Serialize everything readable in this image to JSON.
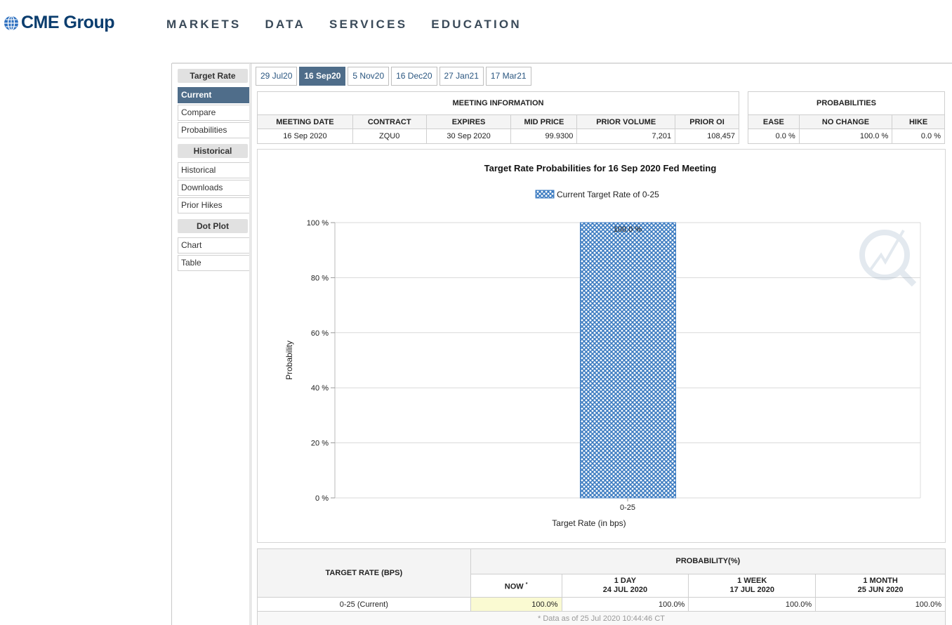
{
  "brand": {
    "name": "CME Group"
  },
  "nav": [
    "MARKETS",
    "DATA",
    "SERVICES",
    "EDUCATION"
  ],
  "sidebar": {
    "groups": [
      {
        "header": "Target Rate",
        "items": [
          {
            "label": "Current",
            "active": true
          },
          {
            "label": "Compare"
          },
          {
            "label": "Probabilities"
          }
        ]
      },
      {
        "header": "Historical",
        "items": [
          {
            "label": "Historical"
          },
          {
            "label": "Downloads"
          },
          {
            "label": "Prior Hikes"
          }
        ]
      },
      {
        "header": "Dot Plot",
        "items": [
          {
            "label": "Chart"
          },
          {
            "label": "Table"
          }
        ]
      }
    ]
  },
  "tabs": [
    {
      "label": "29 Jul20"
    },
    {
      "label": "16 Sep20",
      "active": true
    },
    {
      "label": "5 Nov20"
    },
    {
      "label": "16 Dec20"
    },
    {
      "label": "27 Jan21"
    },
    {
      "label": "17 Mar21"
    }
  ],
  "meeting_info": {
    "title": "MEETING INFORMATION",
    "headers": [
      "MEETING DATE",
      "CONTRACT",
      "EXPIRES",
      "MID PRICE",
      "PRIOR VOLUME",
      "PRIOR OI"
    ],
    "values": [
      "16 Sep 2020",
      "ZQU0",
      "30 Sep 2020",
      "99.9300",
      "7,201",
      "108,457"
    ]
  },
  "probabilities": {
    "title": "PROBABILITIES",
    "headers": [
      "EASE",
      "NO CHANGE",
      "HIKE"
    ],
    "values": [
      "0.0 %",
      "100.0 %",
      "0.0 %"
    ]
  },
  "chart_data": {
    "type": "bar",
    "title": "Target Rate Probabilities for 16 Sep 2020 Fed Meeting",
    "xlabel": "Target Rate (in bps)",
    "ylabel": "Probability",
    "categories": [
      "0-25"
    ],
    "series": [
      {
        "name": "Current Target Rate of 0-25",
        "values": [
          100.0
        ],
        "data_labels": [
          "100.0 %"
        ]
      }
    ],
    "ylim": [
      0,
      100
    ],
    "yticks": [
      0,
      20,
      40,
      60,
      80,
      100
    ],
    "ytick_labels": [
      "0 %",
      "20 %",
      "40 %",
      "60 %",
      "80 %",
      "100 %"
    ],
    "grid": true,
    "legend": "top-center",
    "colors": {
      "bar": "#3a7ac0"
    }
  },
  "prob_table": {
    "left_header": "TARGET RATE (BPS)",
    "right_header": "PROBABILITY(%)",
    "columns": [
      {
        "title": "NOW",
        "mark": "*",
        "date": ""
      },
      {
        "title": "1 DAY",
        "date": "24 JUL 2020"
      },
      {
        "title": "1 WEEK",
        "date": "17 JUL 2020"
      },
      {
        "title": "1 MONTH",
        "date": "25 JUN 2020"
      }
    ],
    "rows": [
      {
        "rate": "0-25 (Current)",
        "values": [
          "100.0%",
          "100.0%",
          "100.0%",
          "100.0%"
        ]
      }
    ],
    "footnote": "* Data as of 25 Jul 2020 10:44:46 CT"
  }
}
